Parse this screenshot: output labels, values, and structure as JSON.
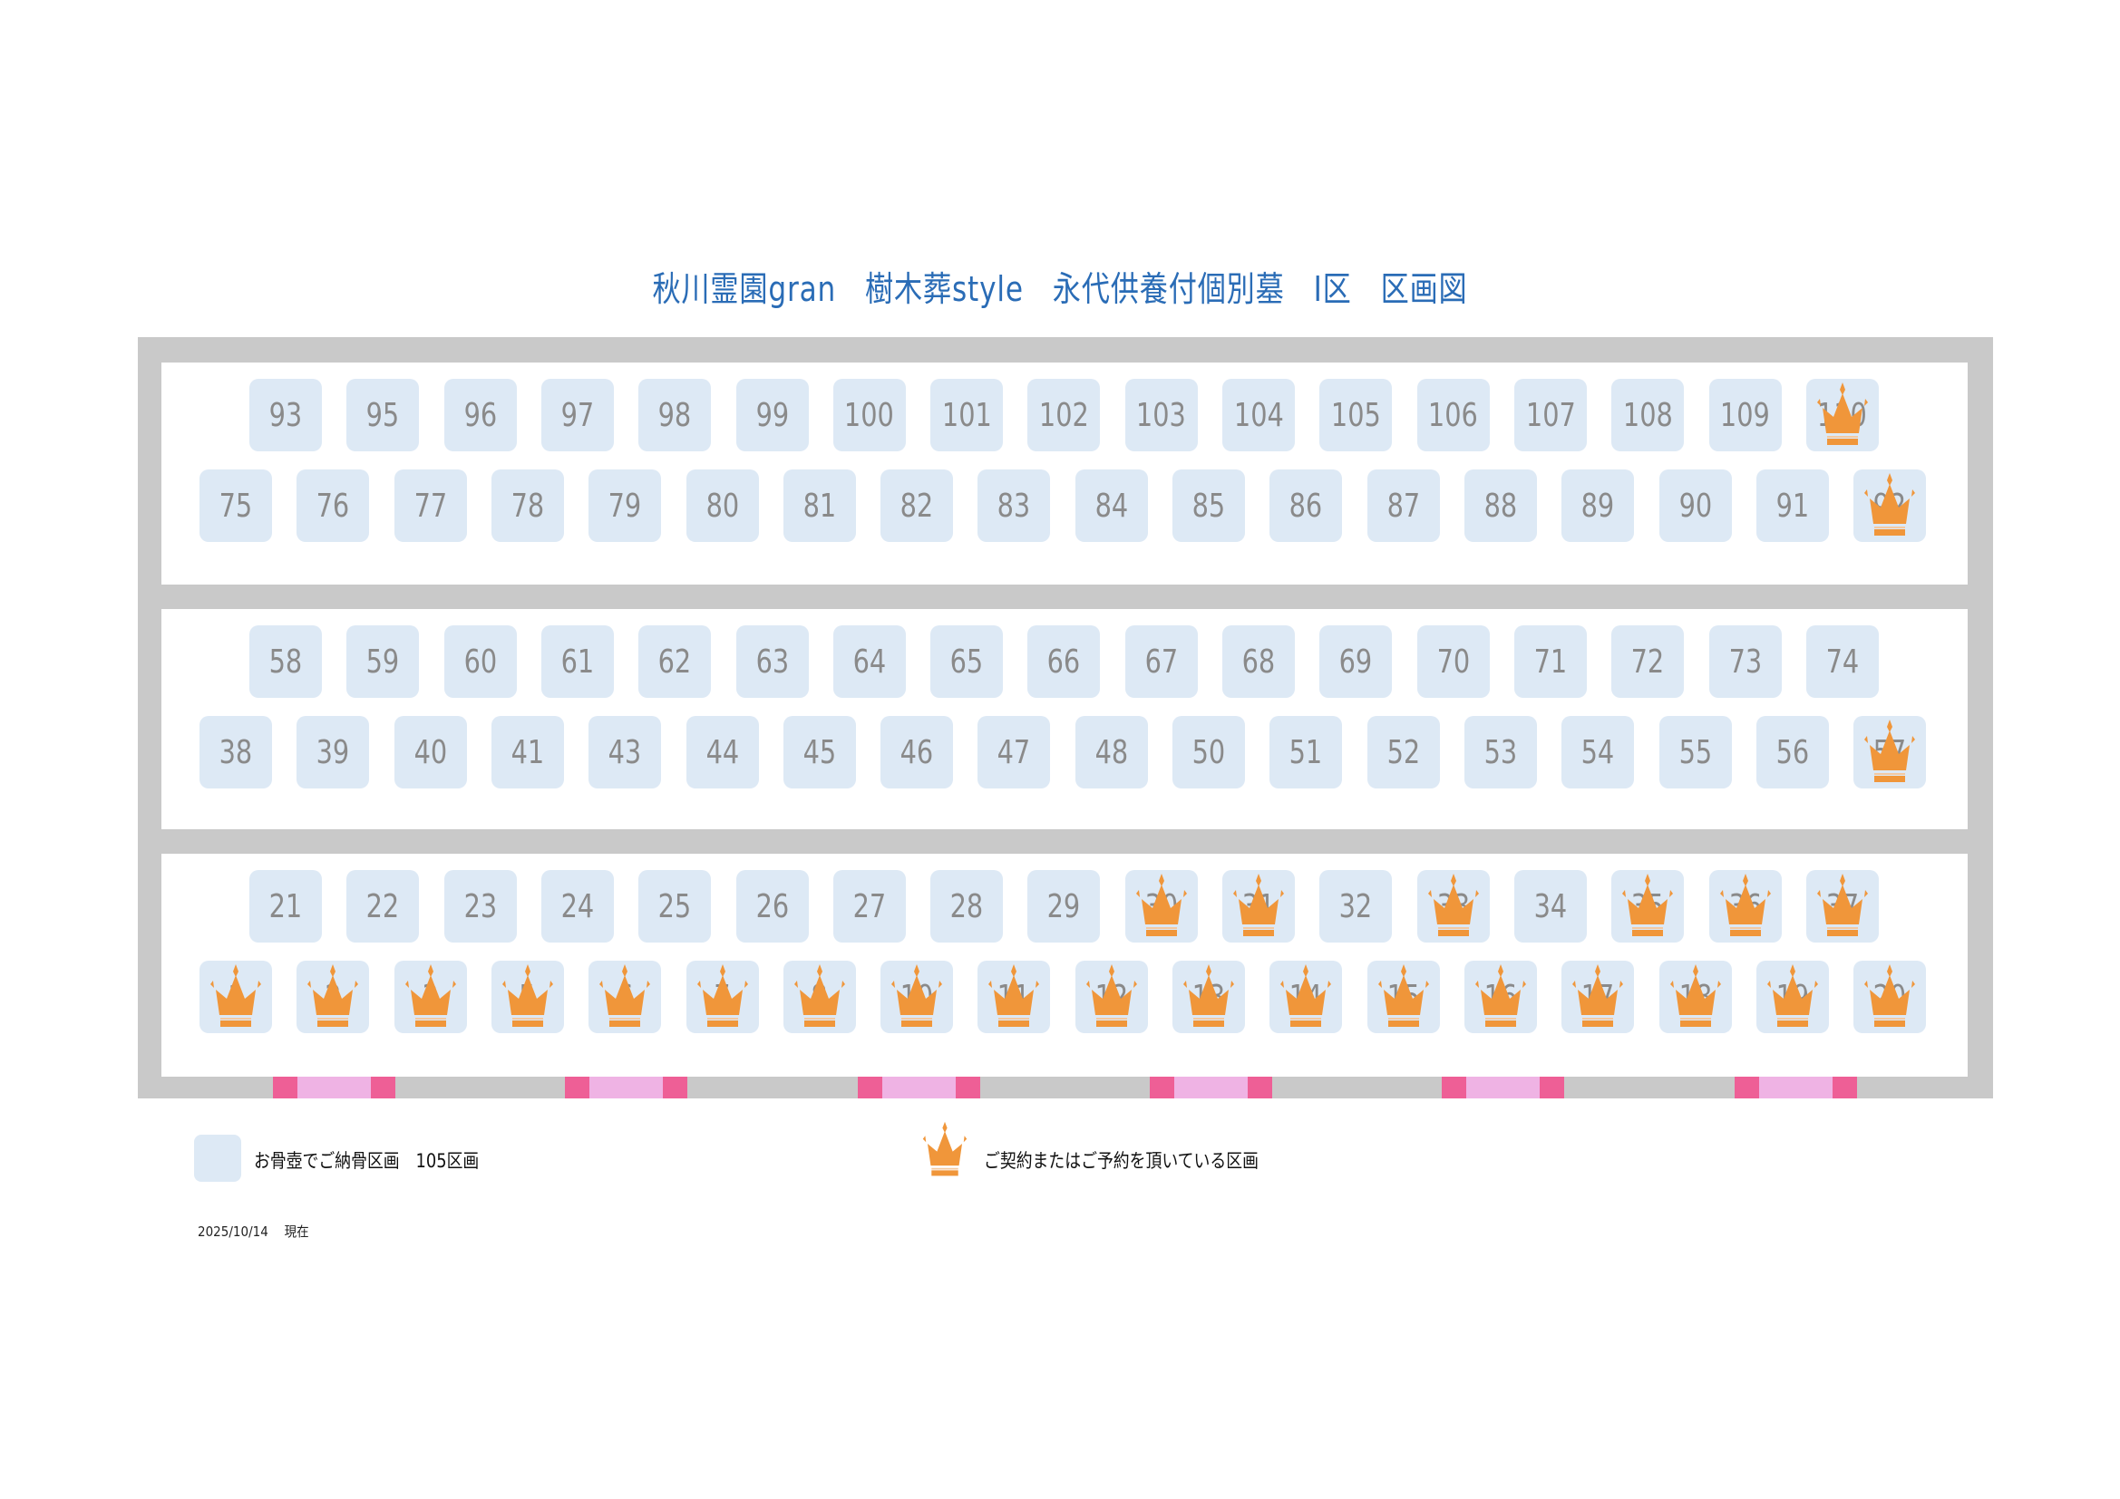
{
  "title": "秋川霊園gran　樹木葬style　永代供養付個別墓　Ⅰ区　区画図",
  "colors": {
    "slot": "#dde9f5",
    "crown": "#f0963a",
    "frame": "#c9c9c9",
    "gate_dark": "#ee5f96",
    "gate_light": "#efb3e4",
    "title": "#2a6cb6"
  },
  "sections": [
    {
      "rows": [
        {
          "slots": [
            {
              "n": "93"
            },
            {
              "n": "95"
            },
            {
              "n": "96"
            },
            {
              "n": "97"
            },
            {
              "n": "98"
            },
            {
              "n": "99"
            },
            {
              "n": "100"
            },
            {
              "n": "101"
            },
            {
              "n": "102"
            },
            {
              "n": "103"
            },
            {
              "n": "104"
            },
            {
              "n": "105"
            },
            {
              "n": "106"
            },
            {
              "n": "107"
            },
            {
              "n": "108"
            },
            {
              "n": "109"
            },
            {
              "n": "110",
              "reserved": true
            }
          ]
        },
        {
          "slots": [
            {
              "n": "75"
            },
            {
              "n": "76"
            },
            {
              "n": "77"
            },
            {
              "n": "78"
            },
            {
              "n": "79"
            },
            {
              "n": "80"
            },
            {
              "n": "81"
            },
            {
              "n": "82"
            },
            {
              "n": "83"
            },
            {
              "n": "84"
            },
            {
              "n": "85"
            },
            {
              "n": "86"
            },
            {
              "n": "87"
            },
            {
              "n": "88"
            },
            {
              "n": "89"
            },
            {
              "n": "90"
            },
            {
              "n": "91"
            },
            {
              "n": "92",
              "reserved": true
            }
          ]
        }
      ]
    },
    {
      "rows": [
        {
          "slots": [
            {
              "n": "58"
            },
            {
              "n": "59"
            },
            {
              "n": "60"
            },
            {
              "n": "61"
            },
            {
              "n": "62"
            },
            {
              "n": "63"
            },
            {
              "n": "64"
            },
            {
              "n": "65"
            },
            {
              "n": "66"
            },
            {
              "n": "67"
            },
            {
              "n": "68"
            },
            {
              "n": "69"
            },
            {
              "n": "70"
            },
            {
              "n": "71"
            },
            {
              "n": "72"
            },
            {
              "n": "73"
            },
            {
              "n": "74"
            }
          ]
        },
        {
          "slots": [
            {
              "n": "38"
            },
            {
              "n": "39"
            },
            {
              "n": "40"
            },
            {
              "n": "41"
            },
            {
              "n": "43"
            },
            {
              "n": "44"
            },
            {
              "n": "45"
            },
            {
              "n": "46"
            },
            {
              "n": "47"
            },
            {
              "n": "48"
            },
            {
              "n": "50"
            },
            {
              "n": "51"
            },
            {
              "n": "52"
            },
            {
              "n": "53"
            },
            {
              "n": "54"
            },
            {
              "n": "55"
            },
            {
              "n": "56"
            },
            {
              "n": "57",
              "reserved": true
            }
          ]
        }
      ]
    },
    {
      "rows": [
        {
          "slots": [
            {
              "n": "21"
            },
            {
              "n": "22"
            },
            {
              "n": "23"
            },
            {
              "n": "24"
            },
            {
              "n": "25"
            },
            {
              "n": "26"
            },
            {
              "n": "27"
            },
            {
              "n": "28"
            },
            {
              "n": "29"
            },
            {
              "n": "30",
              "reserved": true
            },
            {
              "n": "31",
              "reserved": true
            },
            {
              "n": "32"
            },
            {
              "n": "33",
              "reserved": true
            },
            {
              "n": "34"
            },
            {
              "n": "35",
              "reserved": true
            },
            {
              "n": "36",
              "reserved": true
            },
            {
              "n": "37",
              "reserved": true
            }
          ]
        },
        {
          "slots": [
            {
              "n": "1",
              "reserved": true
            },
            {
              "n": "2",
              "reserved": true
            },
            {
              "n": "3",
              "reserved": true
            },
            {
              "n": "5",
              "reserved": true
            },
            {
              "n": "6",
              "reserved": true
            },
            {
              "n": "7",
              "reserved": true
            },
            {
              "n": "8",
              "reserved": true
            },
            {
              "n": "10",
              "reserved": true
            },
            {
              "n": "11",
              "reserved": true
            },
            {
              "n": "12",
              "reserved": true
            },
            {
              "n": "13",
              "reserved": true
            },
            {
              "n": "14",
              "reserved": true
            },
            {
              "n": "15",
              "reserved": true
            },
            {
              "n": "16",
              "reserved": true
            },
            {
              "n": "17",
              "reserved": true
            },
            {
              "n": "18",
              "reserved": true
            },
            {
              "n": "19",
              "reserved": true
            },
            {
              "n": "20",
              "reserved": true
            }
          ]
        }
      ]
    }
  ],
  "legend": {
    "available_label": "お骨壺でご納骨区画　105区画",
    "available_icon": "light-blue-square",
    "reserved_label": "ご契約またはご予約を頂いている区画",
    "reserved_icon": "crown-icon"
  },
  "date_note": "2025/10/14　 現在"
}
